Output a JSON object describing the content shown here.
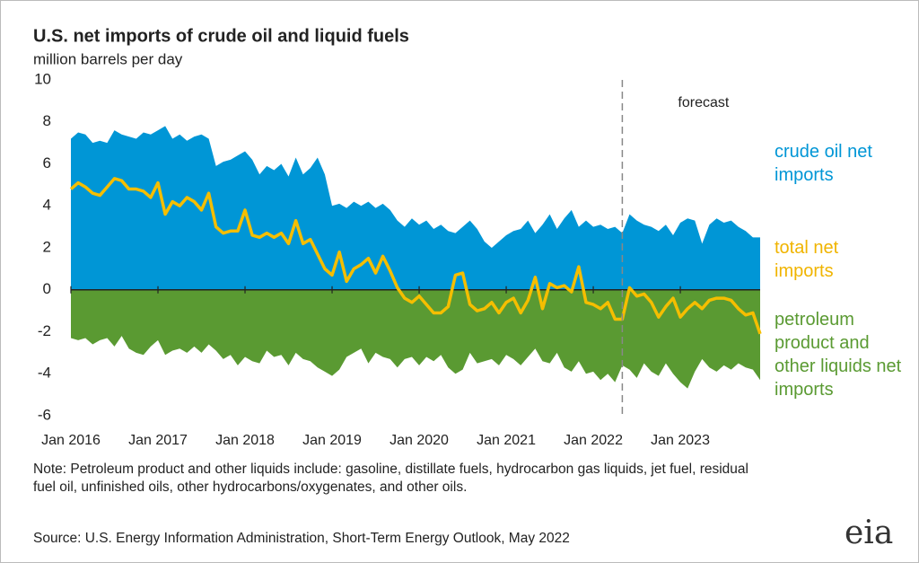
{
  "chart_data": {
    "type": "area",
    "title": "U.S. net imports of crude oil and liquid fuels",
    "subtitle": "million barrels per day",
    "categories": [
      "Jan 2016",
      null,
      null,
      null,
      null,
      null,
      null,
      null,
      null,
      null,
      null,
      null,
      "Jan 2017",
      null,
      null,
      null,
      null,
      null,
      null,
      null,
      null,
      null,
      null,
      null,
      "Jan 2018",
      null,
      null,
      null,
      null,
      null,
      null,
      null,
      null,
      null,
      null,
      null,
      "Jan 2019",
      null,
      null,
      null,
      null,
      null,
      null,
      null,
      null,
      null,
      null,
      null,
      "Jan 2020",
      null,
      null,
      null,
      null,
      null,
      null,
      null,
      null,
      null,
      null,
      null,
      "Jan 2021",
      null,
      null,
      null,
      null,
      null,
      null,
      null,
      null,
      null,
      null,
      null,
      "Jan 2022",
      null,
      null,
      null,
      null,
      null,
      null,
      null,
      null,
      null,
      null,
      null,
      "Jan 2023",
      null,
      null,
      null,
      null,
      null,
      null,
      null,
      null,
      null,
      null,
      null
    ],
    "series": [
      {
        "name": "crude oil net imports",
        "type": "area",
        "color": "#0096d6",
        "values": [
          7.2,
          7.5,
          7.4,
          7.0,
          7.1,
          7.0,
          7.6,
          7.4,
          7.3,
          7.2,
          7.5,
          7.4,
          7.6,
          7.8,
          7.2,
          7.4,
          7.1,
          7.3,
          7.4,
          7.2,
          5.9,
          6.1,
          6.2,
          6.4,
          6.6,
          6.2,
          5.5,
          5.9,
          5.7,
          6.0,
          5.4,
          6.3,
          5.5,
          5.8,
          6.3,
          5.5,
          4.0,
          4.1,
          3.9,
          4.2,
          4.0,
          4.2,
          3.9,
          4.1,
          3.8,
          3.3,
          3.0,
          3.4,
          3.1,
          3.3,
          2.9,
          3.1,
          2.8,
          2.7,
          3.0,
          3.3,
          2.9,
          2.3,
          2.0,
          2.3,
          2.6,
          2.8,
          2.9,
          3.3,
          2.7,
          3.1,
          3.6,
          2.9,
          3.4,
          3.8,
          3.0,
          3.3,
          3.0,
          3.1,
          2.9,
          3.0,
          2.7,
          3.6,
          3.3,
          3.1,
          3.0,
          2.8,
          3.1,
          2.6,
          3.2,
          3.4,
          3.3,
          2.2,
          3.1,
          3.4,
          3.2,
          3.3,
          3.0,
          2.8,
          2.5,
          2.5
        ]
      },
      {
        "name": "petroleum product and other liquids net imports",
        "type": "area",
        "color": "#5a9a32",
        "values": [
          -2.3,
          -2.4,
          -2.3,
          -2.6,
          -2.4,
          -2.3,
          -2.7,
          -2.2,
          -2.8,
          -3.0,
          -3.1,
          -2.7,
          -2.4,
          -3.1,
          -2.9,
          -2.8,
          -3.0,
          -2.7,
          -3.0,
          -2.6,
          -2.9,
          -3.3,
          -3.1,
          -3.6,
          -3.2,
          -3.4,
          -3.5,
          -2.9,
          -3.2,
          -3.1,
          -3.6,
          -3.0,
          -3.3,
          -3.4,
          -3.7,
          -3.9,
          -4.1,
          -3.8,
          -3.2,
          -3.0,
          -2.8,
          -3.5,
          -3.0,
          -3.2,
          -3.3,
          -3.7,
          -3.3,
          -3.2,
          -3.6,
          -3.2,
          -3.4,
          -3.1,
          -3.7,
          -4.0,
          -3.8,
          -3.0,
          -3.5,
          -3.4,
          -3.3,
          -3.6,
          -3.1,
          -3.3,
          -3.6,
          -3.2,
          -2.8,
          -3.4,
          -3.5,
          -3.0,
          -3.7,
          -3.9,
          -3.4,
          -4.0,
          -3.9,
          -4.3,
          -4.0,
          -4.4,
          -3.6,
          -3.8,
          -4.2,
          -3.5,
          -3.9,
          -4.1,
          -3.5,
          -4.0,
          -4.4,
          -4.7,
          -3.9,
          -3.3,
          -3.7,
          -3.9,
          -3.6,
          -3.8,
          -3.5,
          -3.7,
          -3.8,
          -4.3
        ]
      },
      {
        "name": "total net imports",
        "type": "line",
        "color": "#f5be00",
        "values": [
          4.8,
          5.1,
          4.9,
          4.6,
          4.5,
          4.9,
          5.3,
          5.2,
          4.8,
          4.8,
          4.7,
          4.4,
          5.1,
          3.6,
          4.2,
          4.0,
          4.4,
          4.2,
          3.8,
          4.6,
          3.0,
          2.7,
          2.8,
          2.8,
          3.8,
          2.6,
          2.5,
          2.7,
          2.5,
          2.7,
          2.2,
          3.3,
          2.2,
          2.4,
          1.7,
          1.0,
          0.7,
          1.8,
          0.4,
          1.0,
          1.2,
          1.5,
          0.8,
          1.6,
          0.9,
          0.1,
          -0.4,
          -0.6,
          -0.3,
          -0.7,
          -1.1,
          -1.1,
          -0.8,
          0.7,
          0.8,
          -0.7,
          -1.0,
          -0.9,
          -0.6,
          -1.1,
          -0.6,
          -0.4,
          -1.1,
          -0.5,
          0.6,
          -0.9,
          0.3,
          0.1,
          0.2,
          -0.1,
          1.1,
          -0.6,
          -0.7,
          -0.9,
          -0.6,
          -1.4,
          -1.4,
          0.1,
          -0.3,
          -0.2,
          -0.6,
          -1.3,
          -0.8,
          -0.4,
          -1.3,
          -0.9,
          -0.6,
          -0.9,
          -0.5,
          -0.4,
          -0.4,
          -0.5,
          -0.9,
          -1.2,
          -1.1,
          -2.1
        ]
      }
    ],
    "ylim": [
      -6,
      10
    ],
    "yticks": [
      -6,
      -4,
      -2,
      0,
      2,
      4,
      6,
      8,
      10
    ],
    "annotations": [
      {
        "text": "forecast",
        "index": 76
      }
    ],
    "note": "Note: Petroleum product and other liquids include: gasoline, distillate fuels, hydrocarbon gas liquids, jet fuel, residual fuel oil, unfinished oils, other hydrocarbons/oxygenates, and other oils.",
    "source": "Source: U.S. Energy Information Administration,  Short-Term Energy Outlook, May 2022",
    "logo": "eia"
  }
}
